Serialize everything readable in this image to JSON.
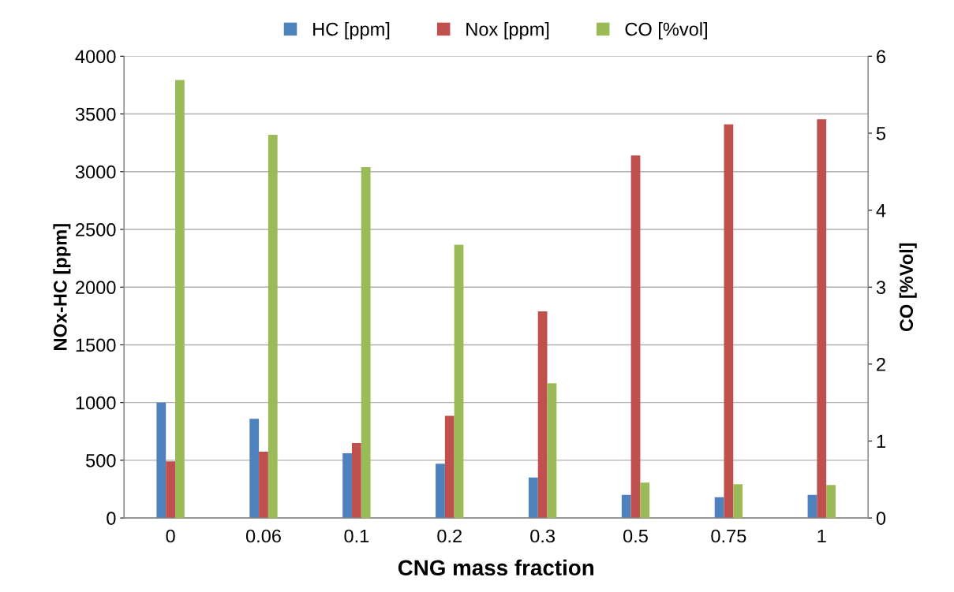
{
  "chart_data": {
    "type": "bar",
    "xlabel": "CNG mass fraction",
    "ylabel": "NOx-HC [ppm]",
    "y2label": "CO [%Vol]",
    "categories": [
      "0",
      "0.06",
      "0.1",
      "0.2",
      "0.3",
      "0.5",
      "0.75",
      "1"
    ],
    "series": [
      {
        "name": "HC [ppm]",
        "color": "#4f81bd",
        "values": [
          1000,
          860,
          560,
          470,
          350,
          200,
          180,
          200
        ]
      },
      {
        "name": "Nox [ppm]",
        "color": "#c0504d",
        "values": [
          490,
          575,
          650,
          885,
          1790,
          3140,
          3410,
          3455
        ]
      },
      {
        "name": "CO [%vol]",
        "color": "#9bbb59",
        "axis": "y2",
        "values": [
          5.69,
          4.98,
          4.56,
          3.55,
          1.75,
          0.46,
          0.44,
          0.43
        ]
      }
    ],
    "ylim": [
      0,
      4000
    ],
    "yticks": [
      0,
      500,
      1000,
      1500,
      2000,
      2500,
      3000,
      3500,
      4000
    ],
    "y2lim": [
      0,
      6
    ],
    "y2ticks": [
      0,
      1,
      2,
      3,
      4,
      5,
      6
    ],
    "grid": "y",
    "legend": "top"
  }
}
